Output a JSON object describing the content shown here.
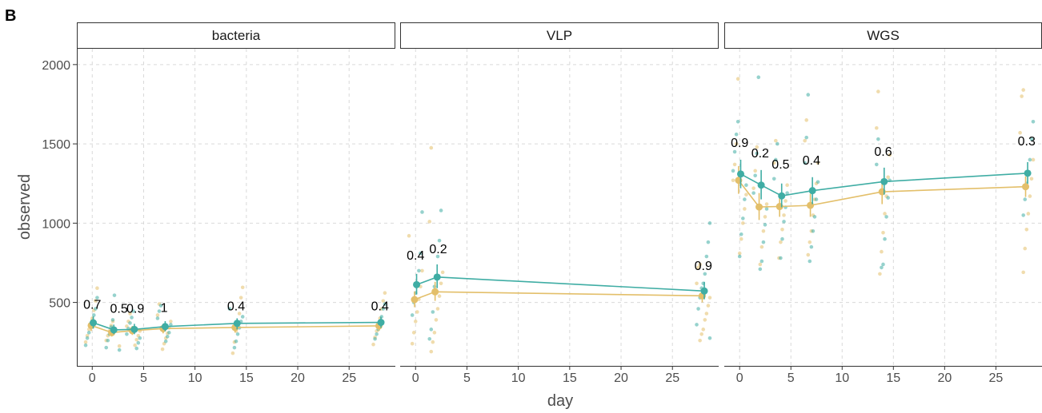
{
  "figure": {
    "tag": "B"
  },
  "chart_data": {
    "type": "scatter",
    "xlabel": "day",
    "ylabel": "observed",
    "xlim": [
      -1.5,
      29.5
    ],
    "ylim": [
      100,
      2100
    ],
    "x_ticks": [
      0,
      5,
      10,
      15,
      20,
      25
    ],
    "y_ticks": [
      500,
      1000,
      1500,
      2000
    ],
    "grid": true,
    "colors": {
      "series1": "#3fada4",
      "series2": "#e3bf6a"
    },
    "panels": [
      {
        "name": "bacteria",
        "days": [
          0,
          2,
          4,
          7,
          14,
          28
        ],
        "series1_mean": [
          372,
          327,
          330,
          348,
          368,
          374
        ],
        "series1_ci": [
          [
            335,
            412
          ],
          [
            300,
            360
          ],
          [
            300,
            365
          ],
          [
            318,
            382
          ],
          [
            330,
            400
          ],
          [
            340,
            410
          ]
        ],
        "series2_mean": [
          355,
          310,
          322,
          335,
          342,
          352
        ],
        "series2_ci": [
          [
            320,
            392
          ],
          [
            285,
            340
          ],
          [
            295,
            352
          ],
          [
            305,
            365
          ],
          [
            310,
            375
          ],
          [
            320,
            385
          ]
        ],
        "pvalues": [
          {
            "day": 0,
            "y": 460,
            "label": "0.7"
          },
          {
            "day": 2.6,
            "y": 435,
            "label": "0.5"
          },
          {
            "day": 4.2,
            "y": 435,
            "label": "0.9"
          },
          {
            "day": 7,
            "y": 440,
            "label": "1"
          },
          {
            "day": 14,
            "y": 450,
            "label": "0.4"
          },
          {
            "day": 28,
            "y": 450,
            "label": "0.4"
          }
        ],
        "series1_points": [
          [
            0,
            230
          ],
          [
            0,
            275
          ],
          [
            0,
            310
          ],
          [
            0,
            345
          ],
          [
            0,
            380
          ],
          [
            0,
            420
          ],
          [
            0,
            460
          ],
          [
            0,
            530
          ],
          [
            2,
            200
          ],
          [
            2,
            215
          ],
          [
            2,
            260
          ],
          [
            2,
            300
          ],
          [
            2,
            345
          ],
          [
            2,
            390
          ],
          [
            2,
            545
          ],
          [
            4,
            210
          ],
          [
            4,
            245
          ],
          [
            4,
            275
          ],
          [
            4,
            300
          ],
          [
            4,
            335
          ],
          [
            4,
            370
          ],
          [
            4,
            405
          ],
          [
            4,
            445
          ],
          [
            7,
            255
          ],
          [
            7,
            285
          ],
          [
            7,
            310
          ],
          [
            7,
            360
          ],
          [
            7,
            400
          ],
          [
            7,
            445
          ],
          [
            7,
            480
          ],
          [
            14,
            215
          ],
          [
            14,
            255
          ],
          [
            14,
            300
          ],
          [
            14,
            340
          ],
          [
            14,
            380
          ],
          [
            14,
            410
          ],
          [
            14,
            460
          ],
          [
            28,
            270
          ],
          [
            28,
            300
          ],
          [
            28,
            330
          ],
          [
            28,
            370
          ],
          [
            28,
            410
          ],
          [
            28,
            460
          ],
          [
            28,
            490
          ]
        ],
        "series2_points": [
          [
            0,
            250
          ],
          [
            0,
            290
          ],
          [
            0,
            330
          ],
          [
            0,
            365
          ],
          [
            0,
            400
          ],
          [
            0,
            450
          ],
          [
            0,
            510
          ],
          [
            0,
            590
          ],
          [
            2,
            225
          ],
          [
            2,
            260
          ],
          [
            2,
            290
          ],
          [
            2,
            320
          ],
          [
            2,
            355
          ],
          [
            2,
            380
          ],
          [
            4,
            230
          ],
          [
            4,
            265
          ],
          [
            4,
            290
          ],
          [
            4,
            320
          ],
          [
            4,
            350
          ],
          [
            4,
            380
          ],
          [
            4,
            430
          ],
          [
            7,
            205
          ],
          [
            7,
            240
          ],
          [
            7,
            275
          ],
          [
            7,
            305
          ],
          [
            7,
            340
          ],
          [
            7,
            380
          ],
          [
            7,
            420
          ],
          [
            7,
            490
          ],
          [
            14,
            180
          ],
          [
            14,
            250
          ],
          [
            14,
            320
          ],
          [
            14,
            360
          ],
          [
            14,
            430
          ],
          [
            14,
            530
          ],
          [
            14,
            595
          ],
          [
            28,
            235
          ],
          [
            28,
            280
          ],
          [
            28,
            320
          ],
          [
            28,
            355
          ],
          [
            28,
            400
          ],
          [
            28,
            460
          ],
          [
            28,
            510
          ],
          [
            28,
            560
          ]
        ]
      },
      {
        "name": "VLP",
        "days": [
          0,
          2,
          28
        ],
        "series1_mean": [
          612,
          660,
          572
        ],
        "series1_ci": [
          [
            550,
            680
          ],
          [
            590,
            740
          ],
          [
            520,
            630
          ]
        ],
        "series2_mean": [
          518,
          567,
          542
        ],
        "series2_ci": [
          [
            470,
            570
          ],
          [
            510,
            630
          ],
          [
            500,
            590
          ]
        ],
        "pvalues": [
          {
            "day": 0,
            "y": 770,
            "label": "0.4"
          },
          {
            "day": 2.2,
            "y": 810,
            "label": "0.2"
          },
          {
            "day": 28,
            "y": 705,
            "label": "0.9"
          }
        ],
        "series1_points": [
          [
            0,
            420
          ],
          [
            0,
            500
          ],
          [
            0,
            560
          ],
          [
            0,
            620
          ],
          [
            0,
            700
          ],
          [
            0,
            810
          ],
          [
            0,
            1070
          ],
          [
            2,
            270
          ],
          [
            2,
            330
          ],
          [
            2,
            440
          ],
          [
            2,
            600
          ],
          [
            2,
            650
          ],
          [
            2,
            790
          ],
          [
            2,
            890
          ],
          [
            2,
            1080
          ],
          [
            28,
            275
          ],
          [
            28,
            360
          ],
          [
            28,
            460
          ],
          [
            28,
            530
          ],
          [
            28,
            590
          ],
          [
            28,
            620
          ],
          [
            28,
            680
          ],
          [
            28,
            790
          ],
          [
            28,
            880
          ],
          [
            28,
            1000
          ]
        ],
        "series2_points": [
          [
            0,
            240
          ],
          [
            0,
            310
          ],
          [
            0,
            380
          ],
          [
            0,
            440
          ],
          [
            0,
            520
          ],
          [
            0,
            600
          ],
          [
            0,
            700
          ],
          [
            0,
            920
          ],
          [
            2,
            190
          ],
          [
            2,
            250
          ],
          [
            2,
            310
          ],
          [
            2,
            390
          ],
          [
            2,
            460
          ],
          [
            2,
            540
          ],
          [
            2,
            620
          ],
          [
            2,
            690
          ],
          [
            2,
            1010
          ],
          [
            2,
            1475
          ],
          [
            28,
            260
          ],
          [
            28,
            300
          ],
          [
            28,
            330
          ],
          [
            28,
            390
          ],
          [
            28,
            430
          ],
          [
            28,
            480
          ],
          [
            28,
            530
          ],
          [
            28,
            620
          ],
          [
            28,
            720
          ],
          [
            28,
            740
          ]
        ]
      },
      {
        "name": "WGS",
        "days": [
          0,
          2,
          4,
          7,
          14,
          28
        ],
        "series1_mean": [
          1310,
          1240,
          1172,
          1205,
          1262,
          1315
        ],
        "series1_ci": [
          [
            1220,
            1400
          ],
          [
            1150,
            1335
          ],
          [
            1100,
            1250
          ],
          [
            1120,
            1290
          ],
          [
            1180,
            1350
          ],
          [
            1250,
            1385
          ]
        ],
        "series2_mean": [
          1270,
          1102,
          1105,
          1112,
          1198,
          1230
        ],
        "series2_ci": [
          [
            1185,
            1360
          ],
          [
            1020,
            1190
          ],
          [
            1040,
            1170
          ],
          [
            1040,
            1185
          ],
          [
            1120,
            1280
          ],
          [
            1165,
            1295
          ]
        ],
        "pvalues": [
          {
            "day": 0,
            "y": 1480,
            "label": "0.9"
          },
          {
            "day": 2,
            "y": 1415,
            "label": "0.2"
          },
          {
            "day": 4,
            "y": 1345,
            "label": "0.5"
          },
          {
            "day": 7,
            "y": 1370,
            "label": "0.4"
          },
          {
            "day": 14,
            "y": 1425,
            "label": "0.6"
          },
          {
            "day": 28,
            "y": 1490,
            "label": "0.3"
          }
        ],
        "series1_points": [
          [
            0,
            790
          ],
          [
            0,
            930
          ],
          [
            0,
            1030
          ],
          [
            0,
            1150
          ],
          [
            0,
            1240
          ],
          [
            0,
            1330
          ],
          [
            0,
            1450
          ],
          [
            0,
            1560
          ],
          [
            0,
            1640
          ],
          [
            2,
            710
          ],
          [
            2,
            760
          ],
          [
            2,
            880
          ],
          [
            2,
            990
          ],
          [
            2,
            1090
          ],
          [
            2,
            1190
          ],
          [
            2,
            1300
          ],
          [
            2,
            1440
          ],
          [
            2,
            1920
          ],
          [
            4,
            780
          ],
          [
            4,
            900
          ],
          [
            4,
            1010
          ],
          [
            4,
            1100
          ],
          [
            4,
            1190
          ],
          [
            4,
            1280
          ],
          [
            4,
            1400
          ],
          [
            4,
            1500
          ],
          [
            7,
            760
          ],
          [
            7,
            850
          ],
          [
            7,
            950
          ],
          [
            7,
            1040
          ],
          [
            7,
            1150
          ],
          [
            7,
            1260
          ],
          [
            7,
            1380
          ],
          [
            7,
            1540
          ],
          [
            7,
            1810
          ],
          [
            14,
            720
          ],
          [
            14,
            740
          ],
          [
            14,
            900
          ],
          [
            14,
            1040
          ],
          [
            14,
            1160
          ],
          [
            14,
            1270
          ],
          [
            14,
            1370
          ],
          [
            14,
            1530
          ],
          [
            28,
            1050
          ],
          [
            28,
            1150
          ],
          [
            28,
            1250
          ],
          [
            28,
            1320
          ],
          [
            28,
            1400
          ],
          [
            28,
            1530
          ],
          [
            28,
            1640
          ]
        ],
        "series2_points": [
          [
            0,
            810
          ],
          [
            0,
            900
          ],
          [
            0,
            1000
          ],
          [
            0,
            1090
          ],
          [
            0,
            1180
          ],
          [
            0,
            1270
          ],
          [
            0,
            1370
          ],
          [
            0,
            1500
          ],
          [
            0,
            1910
          ],
          [
            2,
            740
          ],
          [
            2,
            850
          ],
          [
            2,
            950
          ],
          [
            2,
            1040
          ],
          [
            2,
            1120
          ],
          [
            2,
            1220
          ],
          [
            2,
            1330
          ],
          [
            2,
            1480
          ],
          [
            4,
            780
          ],
          [
            4,
            880
          ],
          [
            4,
            960
          ],
          [
            4,
            1050
          ],
          [
            4,
            1140
          ],
          [
            4,
            1240
          ],
          [
            4,
            1380
          ],
          [
            4,
            1520
          ],
          [
            7,
            800
          ],
          [
            7,
            880
          ],
          [
            7,
            950
          ],
          [
            7,
            1050
          ],
          [
            7,
            1150
          ],
          [
            7,
            1250
          ],
          [
            7,
            1380
          ],
          [
            7,
            1520
          ],
          [
            7,
            1650
          ],
          [
            14,
            680
          ],
          [
            14,
            820
          ],
          [
            14,
            940
          ],
          [
            14,
            1060
          ],
          [
            14,
            1170
          ],
          [
            14,
            1290
          ],
          [
            14,
            1430
          ],
          [
            14,
            1600
          ],
          [
            14,
            1830
          ],
          [
            28,
            690
          ],
          [
            28,
            840
          ],
          [
            28,
            960
          ],
          [
            28,
            1060
          ],
          [
            28,
            1170
          ],
          [
            28,
            1280
          ],
          [
            28,
            1400
          ],
          [
            28,
            1570
          ],
          [
            28,
            1800
          ],
          [
            28,
            1840
          ]
        ]
      }
    ]
  }
}
